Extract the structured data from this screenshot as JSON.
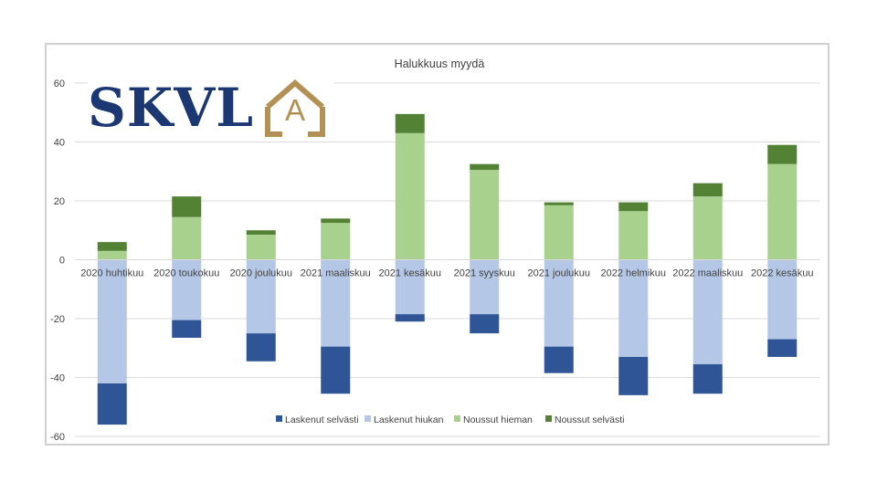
{
  "logo": {
    "text": "SKVL",
    "letter": "A"
  },
  "colors": {
    "laskenut_selvasti": "#2f5597",
    "laskenut_hiukan": "#b4c7e7",
    "noussut_hieman": "#a9d18e",
    "noussut_selvasti": "#548235",
    "logo_navy": "#1c3873",
    "logo_gold": "#b39154"
  },
  "chart_data": {
    "type": "bar",
    "stacked": true,
    "title": "Halukkuus myydä",
    "xlabel": "",
    "ylabel": "",
    "ylim": [
      -60,
      60
    ],
    "yticks": [
      60,
      40,
      20,
      0,
      -20,
      -40,
      -60
    ],
    "grid": true,
    "legend_position": "bottom",
    "categories": [
      "2020 huhtikuu",
      "2020 toukokuu",
      "2020 joulukuu",
      "2021 maaliskuu",
      "2021 kesäkuu",
      "2021 syyskuu",
      "2021 joulukuu",
      "2022 helmikuu",
      "2022 maaliskuu",
      "2022 kesäkuu"
    ],
    "series": [
      {
        "name": "Laskenut selvästi",
        "color": "#2f5597",
        "values": [
          -14,
          -6,
          -9.5,
          -16,
          -2.5,
          -6.5,
          -9,
          -13,
          -10,
          -6
        ]
      },
      {
        "name": "Laskenut hiukan",
        "color": "#b4c7e7",
        "values": [
          -42,
          -20.5,
          -25,
          -29.5,
          -18.5,
          -18.5,
          -29.5,
          -33,
          -35.5,
          -27
        ]
      },
      {
        "name": "Noussut hieman",
        "color": "#a9d18e",
        "values": [
          3,
          14.5,
          8.5,
          12.5,
          43,
          30.5,
          18.5,
          16.5,
          21.5,
          32.5
        ]
      },
      {
        "name": "Noussut selvästi",
        "color": "#548235",
        "values": [
          3,
          7,
          1.5,
          1.5,
          6.5,
          2,
          1,
          3,
          4.5,
          6.5
        ]
      }
    ]
  }
}
